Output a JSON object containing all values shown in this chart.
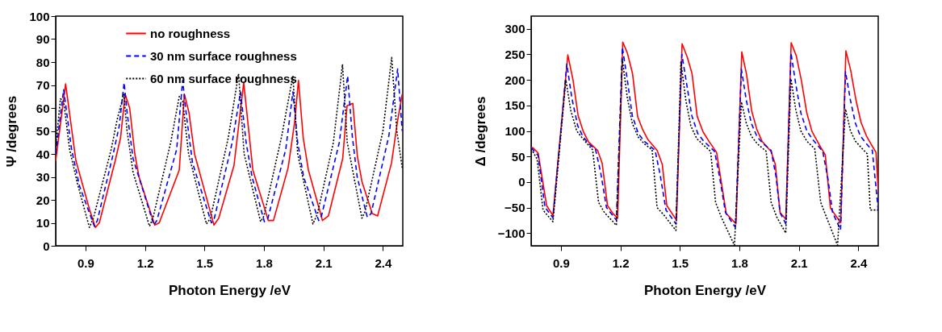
{
  "chart_data": [
    {
      "type": "line",
      "xlabel": "Photon Energy /eV",
      "ylabel": "Ψ /degrees",
      "xlim": [
        0.75,
        2.5
      ],
      "xticks": [
        0.9,
        1.2,
        1.5,
        1.8,
        2.1,
        2.4
      ],
      "ylim": [
        0,
        100
      ],
      "yticks": [
        0,
        10,
        20,
        30,
        40,
        50,
        60,
        70,
        80,
        90,
        100
      ],
      "grid": false,
      "legend": "top",
      "marker": "none",
      "series": [
        {
          "name": "no roughness",
          "color": "#ff0000",
          "line_style": "solid",
          "x": [
            0.75,
            0.8,
            0.852,
            0.92,
            0.95,
            0.97,
            1.05,
            1.077,
            1.1,
            1.123,
            1.149,
            1.17,
            1.249,
            1.272,
            1.373,
            1.399,
            1.422,
            1.45,
            1.548,
            1.572,
            1.649,
            1.698,
            1.744,
            1.822,
            1.848,
            1.922,
            1.955,
            1.974,
            1.998,
            2.024,
            2.095,
            2.125,
            2.197,
            2.219,
            2.248,
            2.271,
            2.294,
            2.346,
            2.373,
            2.443,
            2.473,
            2.497
          ],
          "values": [
            37,
            70.5,
            37,
            16,
            8,
            10,
            37,
            47,
            66,
            60,
            40,
            30,
            9,
            10,
            33,
            66,
            58,
            40,
            9,
            12,
            35,
            71,
            33,
            11,
            11,
            34,
            54,
            72,
            47,
            33,
            11,
            13,
            38,
            61,
            62,
            39,
            28,
            14,
            13,
            36,
            54,
            66
          ]
        },
        {
          "name": "30 nm surface roughness",
          "color": "#0000ff",
          "line_style": "dashed",
          "x": [
            0.75,
            0.79,
            0.83,
            0.87,
            0.945,
            0.96,
            1.04,
            1.07,
            1.095,
            1.11,
            1.14,
            1.245,
            1.26,
            1.36,
            1.39,
            1.41,
            1.44,
            1.535,
            1.55,
            1.64,
            1.682,
            1.71,
            1.74,
            1.802,
            1.82,
            1.91,
            1.946,
            1.97,
            2.0,
            2.076,
            2.09,
            2.18,
            2.222,
            2.245,
            2.27,
            2.321,
            2.34,
            2.43,
            2.474,
            2.497
          ],
          "values": [
            40,
            68,
            42,
            26,
            8.5,
            11,
            40,
            52,
            71,
            58,
            38,
            9,
            11,
            42,
            72,
            56,
            36,
            10,
            12,
            45,
            67,
            45,
            30,
            10.5,
            12,
            42,
            67,
            45,
            30,
            11,
            13,
            45,
            74,
            48,
            30,
            12.5,
            14,
            48,
            77,
            50
          ]
        },
        {
          "name": "60 nm surface roughness",
          "color": "#000000",
          "line_style": "dotted",
          "x": [
            0.75,
            0.774,
            0.79,
            0.82,
            0.86,
            0.92,
            0.94,
            1.03,
            1.06,
            1.093,
            1.11,
            1.14,
            1.223,
            1.24,
            1.33,
            1.373,
            1.39,
            1.42,
            1.51,
            1.53,
            1.62,
            1.672,
            1.7,
            1.783,
            1.8,
            1.89,
            1.946,
            1.97,
            2.047,
            2.07,
            2.15,
            2.196,
            2.22,
            2.294,
            2.31,
            2.4,
            2.444,
            2.47,
            2.497
          ],
          "values": [
            43,
            64,
            63,
            42,
            27,
            8,
            12,
            42,
            55,
            66,
            50,
            32,
            8.5,
            12,
            45,
            65,
            63,
            40,
            9.5,
            12,
            47,
            75,
            40,
            10.5,
            13,
            48,
            74,
            40,
            9.5,
            14,
            45,
            79,
            45,
            12,
            15,
            50,
            82,
            50,
            34
          ]
        }
      ]
    },
    {
      "type": "line",
      "xlabel": "Photon Energy /eV",
      "ylabel": "Δ /degrees",
      "xlim": [
        0.75,
        2.5
      ],
      "xticks": [
        0.9,
        1.2,
        1.5,
        1.8,
        2.1,
        2.4
      ],
      "ylim": [
        -125,
        325
      ],
      "yticks": [
        -100,
        -50,
        0,
        50,
        100,
        150,
        200,
        250,
        300
      ],
      "grid": false,
      "legend": false,
      "marker": "none",
      "series": [
        {
          "color": "#ff0000",
          "line_style": "solid",
          "x": [
            0.75,
            0.759,
            0.785,
            0.828,
            0.86,
            0.935,
            0.961,
            0.987,
            1.013,
            1.04,
            1.085,
            1.108,
            1.135,
            1.163,
            1.186,
            1.212,
            1.235,
            1.261,
            1.287,
            1.313,
            1.339,
            1.385,
            1.411,
            1.434,
            1.483,
            1.511,
            1.537,
            1.561,
            1.587,
            1.617,
            1.646,
            1.685,
            1.734,
            1.783,
            1.812,
            1.836,
            1.862,
            1.888,
            1.914,
            1.959,
            1.981,
            2.005,
            2.034,
            2.061,
            2.087,
            2.113,
            2.14,
            2.166,
            2.201,
            2.233,
            2.259,
            2.311,
            2.337,
            2.361,
            2.387,
            2.413,
            2.441,
            2.464,
            2.489,
            2.5
          ],
          "values": [
            68,
            67,
            57,
            -46,
            -66,
            249,
            200,
            130,
            99,
            78,
            62,
            37,
            -46,
            -62,
            -71,
            274,
            253,
            213,
            128,
            102,
            83,
            62,
            35,
            -46,
            -75,
            271,
            245,
            213,
            129,
            98,
            80,
            58,
            -62,
            -82,
            255,
            211,
            139,
            103,
            80,
            60,
            35,
            -60,
            -73,
            273,
            247,
            198,
            135,
            99,
            74,
            53,
            -51,
            -80,
            257,
            219,
            162,
            117,
            90,
            74,
            58,
            -20
          ]
        },
        {
          "color": "#0000ff",
          "line_style": "dashed",
          "x": [
            0.75,
            0.785,
            0.82,
            0.86,
            0.93,
            0.955,
            0.985,
            1.01,
            1.04,
            1.075,
            1.1,
            1.13,
            1.18,
            1.21,
            1.235,
            1.26,
            1.29,
            1.32,
            1.375,
            1.4,
            1.43,
            1.48,
            1.51,
            1.535,
            1.56,
            1.59,
            1.62,
            1.675,
            1.7,
            1.73,
            1.78,
            1.81,
            1.835,
            1.86,
            1.89,
            1.92,
            1.96,
            1.985,
            2.005,
            2.034,
            2.06,
            2.085,
            2.11,
            2.14,
            2.17,
            2.22,
            2.245,
            2.27,
            2.31,
            2.335,
            2.36,
            2.385,
            2.41,
            2.44,
            2.47,
            2.5
          ],
          "values": [
            67,
            52,
            -50,
            -70,
            231,
            165,
            110,
            90,
            75,
            63,
            20,
            -50,
            -75,
            264,
            200,
            130,
            95,
            80,
            62,
            15,
            -55,
            -82,
            250,
            190,
            130,
            95,
            80,
            60,
            10,
            -60,
            -89,
            221,
            160,
            115,
            88,
            75,
            62,
            10,
            -60,
            -82,
            253,
            190,
            135,
            100,
            83,
            60,
            10,
            -60,
            -94,
            216,
            160,
            115,
            90,
            75,
            62,
            -55
          ]
        },
        {
          "color": "#000000",
          "line_style": "dotted",
          "x": [
            0.75,
            0.78,
            0.81,
            0.86,
            0.925,
            0.95,
            0.98,
            1.01,
            1.06,
            1.09,
            1.12,
            1.18,
            1.21,
            1.235,
            1.26,
            1.29,
            1.32,
            1.36,
            1.385,
            1.42,
            1.48,
            1.505,
            1.53,
            1.555,
            1.585,
            1.62,
            1.655,
            1.68,
            1.71,
            1.775,
            1.81,
            1.835,
            1.86,
            1.89,
            1.935,
            1.96,
            1.99,
            2.034,
            2.06,
            2.085,
            2.11,
            2.14,
            2.18,
            2.21,
            2.24,
            2.295,
            2.335,
            2.36,
            2.385,
            2.42,
            2.445,
            2.46,
            2.5
          ],
          "values": [
            65,
            45,
            -55,
            -78,
            200,
            140,
            100,
            85,
            63,
            -40,
            -60,
            -85,
            240,
            165,
            115,
            88,
            75,
            63,
            -50,
            -65,
            -95,
            235,
            160,
            110,
            85,
            72,
            60,
            -40,
            -70,
            -124,
            157,
            115,
            90,
            75,
            60,
            -40,
            -70,
            -100,
            202,
            140,
            100,
            80,
            65,
            -40,
            -70,
            -124,
            143,
            100,
            80,
            65,
            55,
            -55,
            -55
          ]
        }
      ]
    }
  ]
}
